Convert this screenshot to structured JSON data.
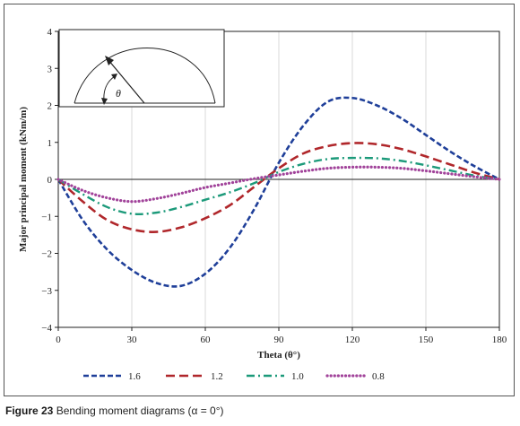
{
  "caption": {
    "label": "Figure 23",
    "text": "Bending moment diagrams (α = 0°)"
  },
  "chart_data": {
    "type": "line",
    "xlabel": "Theta (θ°)",
    "ylabel": "Major principal moment (kNm/m)",
    "xlim": [
      0,
      180
    ],
    "ylim": [
      -4,
      4
    ],
    "xticks": [
      0,
      30,
      60,
      90,
      120,
      150,
      180
    ],
    "yticks": [
      -4,
      -3,
      -2,
      -1,
      0,
      1,
      2,
      3,
      4
    ],
    "xtick_labels": [
      "0",
      "30",
      "60",
      "90",
      "120",
      "150",
      "180"
    ],
    "ytick_labels": [
      "−4",
      "−3",
      "−2",
      "−1",
      "0",
      "1",
      "2",
      "3",
      "4"
    ],
    "grid": "vertical",
    "legend_position": "bottom",
    "inset": {
      "angle_label": "θ"
    },
    "series": [
      {
        "name": "1.6",
        "color": "#1f3f99",
        "dash": "short-dash",
        "x": [
          0,
          10,
          20,
          30,
          40,
          50,
          60,
          70,
          80,
          90,
          100,
          110,
          120,
          130,
          140,
          150,
          160,
          170,
          180
        ],
        "y": [
          0,
          -1.1,
          -1.9,
          -2.45,
          -2.8,
          -2.88,
          -2.55,
          -1.85,
          -0.8,
          0.45,
          1.45,
          2.1,
          2.2,
          2.0,
          1.65,
          1.2,
          0.75,
          0.35,
          0.0
        ]
      },
      {
        "name": "1.2",
        "color": "#b0272b",
        "dash": "long-dash",
        "x": [
          0,
          10,
          20,
          30,
          40,
          50,
          60,
          70,
          80,
          90,
          100,
          110,
          120,
          130,
          140,
          150,
          160,
          170,
          180
        ],
        "y": [
          0,
          -0.6,
          -1.1,
          -1.35,
          -1.42,
          -1.3,
          -1.05,
          -0.7,
          -0.2,
          0.3,
          0.7,
          0.9,
          0.98,
          0.95,
          0.82,
          0.62,
          0.4,
          0.18,
          0.0
        ]
      },
      {
        "name": "1.0",
        "color": "#1c9a7a",
        "dash": "dash-dot",
        "x": [
          0,
          10,
          20,
          30,
          40,
          50,
          60,
          70,
          80,
          90,
          100,
          110,
          120,
          130,
          140,
          150,
          160,
          170,
          180
        ],
        "y": [
          0,
          -0.4,
          -0.75,
          -0.93,
          -0.9,
          -0.75,
          -0.55,
          -0.35,
          -0.1,
          0.2,
          0.42,
          0.55,
          0.58,
          0.57,
          0.5,
          0.38,
          0.24,
          0.1,
          0.0
        ]
      },
      {
        "name": "0.8",
        "color": "#a1439a",
        "dash": "dotted",
        "x": [
          0,
          10,
          20,
          30,
          40,
          50,
          60,
          70,
          80,
          90,
          100,
          110,
          120,
          130,
          140,
          150,
          160,
          170,
          180
        ],
        "y": [
          0,
          -0.3,
          -0.5,
          -0.6,
          -0.52,
          -0.38,
          -0.22,
          -0.1,
          0.02,
          0.12,
          0.22,
          0.3,
          0.33,
          0.33,
          0.3,
          0.23,
          0.15,
          0.07,
          0.0
        ]
      }
    ]
  }
}
